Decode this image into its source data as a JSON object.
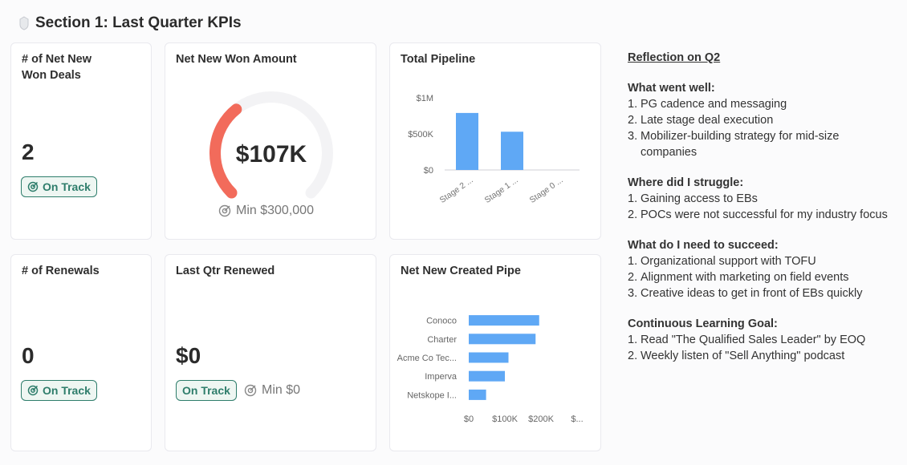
{
  "section": {
    "title": "Section 1: Last Quarter KPIs",
    "icon": "shield-icon"
  },
  "cards": {
    "net_new_won_deals": {
      "title_line1": "# of Net New",
      "title_line2": "Won Deals",
      "value": "2",
      "status": "On Track"
    },
    "net_new_won_amount": {
      "title": "Net New Won Amount",
      "value": "$107K",
      "min": "Min $300,000",
      "progress_fraction": 0.357
    },
    "total_pipeline": {
      "title": "Total Pipeline"
    },
    "renewals": {
      "title": "# of Renewals",
      "value": "0",
      "status": "On Track"
    },
    "last_qtr_renewed": {
      "title": "Last Qtr Renewed",
      "value": "$0",
      "status": "On Track",
      "min": "Min $0"
    },
    "net_new_created_pipe": {
      "title": "Net New Created Pipe"
    }
  },
  "colors": {
    "accent_green": "#2e7d6b",
    "bar_blue": "#5fa8f5",
    "gauge_red": "#f26b5b",
    "gauge_track": "#f3f3f5"
  },
  "chart_data": [
    {
      "type": "bar",
      "title": "Total Pipeline",
      "categories": [
        "Stage 2 ...",
        "Stage 1 ...",
        "Stage 0 ..."
      ],
      "values": [
        790000,
        530000,
        0
      ],
      "yticks": [
        "$0",
        "$500K",
        "$1M"
      ],
      "ylim": [
        0,
        1000000
      ],
      "grid": false
    },
    {
      "type": "bar",
      "orientation": "horizontal",
      "title": "Net New Created Pipe",
      "categories": [
        "Conoco",
        "Charter",
        "Acme Co Tec...",
        "Imperva",
        "Netskope I..."
      ],
      "values": [
        195000,
        185000,
        110000,
        100000,
        48000
      ],
      "xticks": [
        "$0",
        "$100K",
        "$200K",
        "$..."
      ],
      "xlim": [
        0,
        300000
      ],
      "grid": false
    }
  ],
  "reflection": {
    "title": "Reflection on Q2",
    "groups": [
      {
        "heading": "What went well:",
        "items": [
          "PG cadence and messaging",
          "Late stage deal execution",
          "Mobilizer-building strategy for mid-size companies"
        ]
      },
      {
        "heading": "Where did I struggle:",
        "items": [
          "Gaining access to EBs",
          "POCs were not successful for my industry focus"
        ]
      },
      {
        "heading": "What do I need to succeed:",
        "items": [
          "Organizational support with TOFU",
          "Alignment with marketing on field events",
          "Creative ideas to get in front of EBs quickly"
        ]
      },
      {
        "heading": "Continuous Learning Goal:",
        "items": [
          "Read \"The Qualified Sales Leader\" by EOQ",
          "Weekly listen of \"Sell Anything\" podcast"
        ]
      }
    ]
  }
}
